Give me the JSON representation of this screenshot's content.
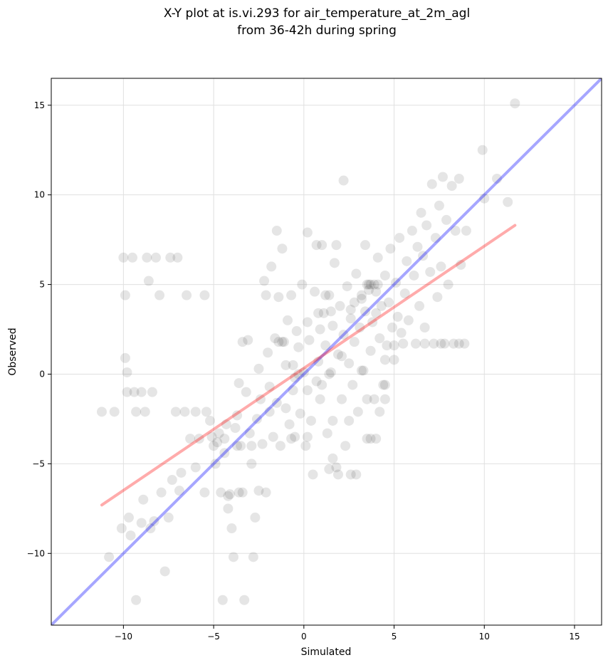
{
  "chart_data": {
    "type": "scatter",
    "title": "X-Y plot at is.vi.293 for air_temperature_at_2m_agl",
    "subtitle": "from 36-42h during spring",
    "xlabel": "Simulated",
    "ylabel": "Observed",
    "xlim": [
      -14,
      16.5
    ],
    "ylim": [
      -14,
      16.5
    ],
    "x_ticks": [
      -10,
      -5,
      0,
      5,
      10,
      15
    ],
    "y_ticks": [
      -10,
      -5,
      0,
      5,
      10,
      15
    ],
    "x_tick_labels": [
      "−10",
      "−5",
      "0",
      "5",
      "10",
      "15"
    ],
    "y_tick_labels": [
      "−10",
      "−5",
      "0",
      "5",
      "10",
      "15"
    ],
    "grid": true,
    "point_color": "#000000",
    "identity_line": {
      "x": [
        -14,
        16.5
      ],
      "y": [
        -14,
        16.5
      ],
      "color": "#0000ff"
    },
    "fit_line": {
      "x": [
        -11.2,
        11.7
      ],
      "y": [
        -7.3,
        8.3
      ],
      "color": "#ff0000"
    },
    "points": [
      [
        -11.2,
        -2.1
      ],
      [
        -10.8,
        -10.2
      ],
      [
        -10.5,
        -2.1
      ],
      [
        -10.1,
        -8.6
      ],
      [
        -10.0,
        6.5
      ],
      [
        -9.9,
        0.9
      ],
      [
        -9.9,
        4.4
      ],
      [
        -9.8,
        0.1
      ],
      [
        -9.8,
        -1.0
      ],
      [
        -9.7,
        -8.0
      ],
      [
        -9.6,
        -9.0
      ],
      [
        -9.5,
        6.5
      ],
      [
        -9.4,
        -1.0
      ],
      [
        -9.3,
        -2.1
      ],
      [
        -9.3,
        -12.6
      ],
      [
        -9.0,
        -1.0
      ],
      [
        -9.0,
        -8.3
      ],
      [
        -8.9,
        -7.0
      ],
      [
        -8.8,
        -2.1
      ],
      [
        -8.7,
        6.5
      ],
      [
        -8.6,
        5.2
      ],
      [
        -8.5,
        -8.6
      ],
      [
        -8.4,
        -1.0
      ],
      [
        -8.3,
        -8.2
      ],
      [
        -8.2,
        6.5
      ],
      [
        -8.0,
        4.4
      ],
      [
        -7.9,
        -6.6
      ],
      [
        -7.7,
        -11.0
      ],
      [
        -7.5,
        -8.0
      ],
      [
        -7.4,
        6.5
      ],
      [
        -7.3,
        -5.9
      ],
      [
        -7.1,
        -2.1
      ],
      [
        -7.0,
        6.5
      ],
      [
        -6.9,
        -6.5
      ],
      [
        -6.8,
        -5.5
      ],
      [
        -6.6,
        -2.1
      ],
      [
        -6.5,
        4.4
      ],
      [
        -6.3,
        -3.6
      ],
      [
        -6.0,
        -2.1
      ],
      [
        -6.0,
        -5.2
      ],
      [
        -5.8,
        -3.6
      ],
      [
        -5.5,
        4.4
      ],
      [
        -5.5,
        -6.6
      ],
      [
        -5.4,
        -2.1
      ],
      [
        -5.2,
        -2.6
      ],
      [
        -5.0,
        -4.0
      ],
      [
        -4.9,
        -5.0
      ],
      [
        -4.7,
        -3.3
      ],
      [
        -4.6,
        -6.6
      ],
      [
        -4.5,
        -12.6
      ],
      [
        -4.4,
        -4.4
      ],
      [
        -4.3,
        -2.8
      ],
      [
        -4.2,
        -7.5
      ],
      [
        -4.1,
        -6.7
      ],
      [
        -4.0,
        -8.6
      ],
      [
        -3.9,
        -10.2
      ],
      [
        -3.8,
        -3.0
      ],
      [
        -3.7,
        -2.3
      ],
      [
        -3.6,
        -0.5
      ],
      [
        -3.5,
        -4.0
      ],
      [
        -3.4,
        -6.6
      ],
      [
        -3.3,
        -12.6
      ],
      [
        -3.2,
        -1.0
      ],
      [
        -3.1,
        1.9
      ],
      [
        -3.0,
        -3.3
      ],
      [
        -2.9,
        -5.0
      ],
      [
        -2.8,
        -10.2
      ],
      [
        -2.7,
        -8.0
      ],
      [
        -2.6,
        -2.5
      ],
      [
        -2.5,
        0.3
      ],
      [
        -2.4,
        -1.4
      ],
      [
        -2.3,
        -3.9
      ],
      [
        -2.2,
        5.2
      ],
      [
        -2.1,
        -6.6
      ],
      [
        -2.0,
        1.2
      ],
      [
        -1.9,
        -0.7
      ],
      [
        -1.8,
        6.0
      ],
      [
        -1.7,
        -3.5
      ],
      [
        -1.6,
        2.0
      ],
      [
        -1.5,
        -1.6
      ],
      [
        -1.4,
        4.3
      ],
      [
        -1.3,
        -4.0
      ],
      [
        -1.2,
        7.0
      ],
      [
        -1.1,
        1.8
      ],
      [
        -1.0,
        -1.9
      ],
      [
        -0.9,
        3.0
      ],
      [
        -0.8,
        -2.8
      ],
      [
        -0.7,
        4.4
      ],
      [
        -0.6,
        0.5
      ],
      [
        -0.5,
        -3.5
      ],
      [
        -0.4,
        2.4
      ],
      [
        -0.3,
        1.5
      ],
      [
        -0.2,
        -2.2
      ],
      [
        -0.1,
        5.0
      ],
      [
        0.0,
        0.1
      ],
      [
        0.1,
        -4.0
      ],
      [
        0.2,
        2.9
      ],
      [
        0.3,
        1.9
      ],
      [
        0.4,
        -2.6
      ],
      [
        0.5,
        -5.6
      ],
      [
        0.6,
        4.6
      ],
      [
        0.7,
        7.2
      ],
      [
        0.8,
        0.7
      ],
      [
        0.9,
        2.5
      ],
      [
        1.0,
        -0.6
      ],
      [
        1.1,
        3.4
      ],
      [
        1.2,
        1.6
      ],
      [
        1.3,
        -3.3
      ],
      [
        1.4,
        4.4
      ],
      [
        1.5,
        0.1
      ],
      [
        1.6,
        2.7
      ],
      [
        1.7,
        6.2
      ],
      [
        1.8,
        -5.2
      ],
      [
        1.9,
        1.1
      ],
      [
        2.0,
        3.8
      ],
      [
        2.1,
        -1.4
      ],
      [
        2.2,
        2.2
      ],
      [
        2.3,
        -4.0
      ],
      [
        2.4,
        4.9
      ],
      [
        2.5,
        0.6
      ],
      [
        2.6,
        3.1
      ],
      [
        2.7,
        -0.6
      ],
      [
        2.8,
        1.8
      ],
      [
        2.9,
        5.6
      ],
      [
        3.0,
        -2.1
      ],
      [
        3.1,
        2.6
      ],
      [
        3.2,
        4.2
      ],
      [
        3.3,
        0.2
      ],
      [
        3.4,
        3.5
      ],
      [
        3.5,
        -3.6
      ],
      [
        3.6,
        5.0
      ],
      [
        3.7,
        1.3
      ],
      [
        3.8,
        2.9
      ],
      [
        3.9,
        -1.4
      ],
      [
        4.0,
        4.6
      ],
      [
        4.1,
        6.5
      ],
      [
        4.2,
        2.0
      ],
      [
        4.3,
        3.8
      ],
      [
        4.4,
        -0.6
      ],
      [
        4.5,
        5.5
      ],
      [
        4.6,
        1.6
      ],
      [
        4.7,
        4.0
      ],
      [
        4.8,
        7.0
      ],
      [
        4.9,
        2.6
      ],
      [
        5.0,
        0.8
      ],
      [
        5.1,
        5.1
      ],
      [
        5.2,
        3.2
      ],
      [
        5.3,
        7.6
      ],
      [
        5.5,
        1.7
      ],
      [
        5.6,
        4.5
      ],
      [
        5.7,
        6.3
      ],
      [
        5.8,
        3.0
      ],
      [
        6.0,
        8.0
      ],
      [
        6.1,
        5.5
      ],
      [
        6.2,
        1.7
      ],
      [
        6.3,
        7.1
      ],
      [
        6.4,
        3.8
      ],
      [
        6.5,
        9.0
      ],
      [
        6.6,
        6.6
      ],
      [
        6.7,
        2.6
      ],
      [
        6.8,
        8.3
      ],
      [
        7.0,
        5.7
      ],
      [
        7.1,
        10.6
      ],
      [
        7.2,
        1.7
      ],
      [
        7.3,
        7.6
      ],
      [
        7.4,
        4.3
      ],
      [
        7.5,
        9.4
      ],
      [
        7.6,
        6.0
      ],
      [
        7.7,
        11.0
      ],
      [
        7.8,
        1.7
      ],
      [
        7.9,
        8.6
      ],
      [
        8.0,
        5.0
      ],
      [
        8.2,
        10.5
      ],
      [
        8.3,
        1.7
      ],
      [
        8.4,
        8.0
      ],
      [
        8.6,
        10.9
      ],
      [
        8.7,
        6.1
      ],
      [
        8.9,
        1.7
      ],
      [
        9.0,
        8.0
      ],
      [
        9.9,
        12.5
      ],
      [
        10.0,
        9.8
      ],
      [
        10.7,
        10.9
      ],
      [
        11.3,
        9.6
      ],
      [
        11.7,
        15.1
      ],
      [
        2.2,
        10.8
      ],
      [
        1.0,
        7.2
      ],
      [
        1.8,
        7.2
      ],
      [
        3.4,
        7.2
      ],
      [
        0.2,
        7.9
      ],
      [
        -1.5,
        8.0
      ],
      [
        3.5,
        5.0
      ],
      [
        3.7,
        5.0
      ],
      [
        3.9,
        5.0
      ],
      [
        4.1,
        5.0
      ],
      [
        3.2,
        4.4
      ],
      [
        3.6,
        4.7
      ],
      [
        2.8,
        4.0
      ],
      [
        4.0,
        3.4
      ],
      [
        2.6,
        3.6
      ],
      [
        1.5,
        3.5
      ],
      [
        1.2,
        4.4
      ],
      [
        0.8,
        3.4
      ],
      [
        -1.4,
        1.8
      ],
      [
        -1.2,
        1.8
      ],
      [
        -3.4,
        1.8
      ],
      [
        -2.1,
        4.4
      ],
      [
        -3.7,
        -4.0
      ],
      [
        -2.9,
        -4.0
      ],
      [
        -4.4,
        -3.6
      ],
      [
        -5.1,
        -3.5
      ],
      [
        -4.8,
        -3.8
      ],
      [
        -4.2,
        -6.8
      ],
      [
        -3.6,
        -6.6
      ],
      [
        -2.5,
        -6.5
      ],
      [
        -0.7,
        -3.6
      ],
      [
        0.2,
        -3.5
      ],
      [
        1.6,
        -2.6
      ],
      [
        2.5,
        -2.6
      ],
      [
        3.7,
        -3.6
      ],
      [
        4.0,
        -3.6
      ],
      [
        2.6,
        -5.6
      ],
      [
        2.9,
        -5.6
      ],
      [
        1.9,
        -5.6
      ],
      [
        1.4,
        -5.3
      ],
      [
        1.6,
        -4.7
      ],
      [
        3.5,
        -1.4
      ],
      [
        4.5,
        -1.4
      ],
      [
        4.2,
        -2.1
      ],
      [
        4.5,
        -0.6
      ],
      [
        3.2,
        0.2
      ],
      [
        4.5,
        0.8
      ],
      [
        5.0,
        1.6
      ],
      [
        5.4,
        2.3
      ],
      [
        6.7,
        1.7
      ],
      [
        7.6,
        1.7
      ],
      [
        8.6,
        1.7
      ],
      [
        2.1,
        1.0
      ],
      [
        1.4,
        0.0
      ],
      [
        0.7,
        -0.4
      ],
      [
        0.2,
        -0.9
      ],
      [
        -0.3,
        0.0
      ],
      [
        -0.6,
        -0.9
      ],
      [
        -1.0,
        0.5
      ],
      [
        -1.9,
        -2.1
      ],
      [
        -0.5,
        -0.2
      ],
      [
        0.9,
        -1.4
      ]
    ]
  }
}
